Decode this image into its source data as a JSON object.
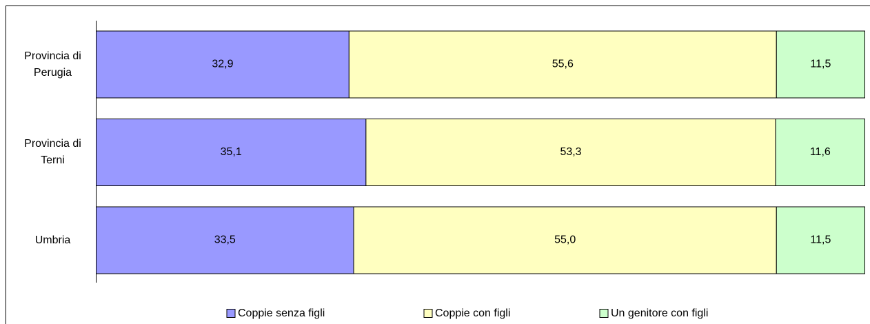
{
  "chart_data": {
    "type": "stacked-bar-horizontal",
    "categories": [
      "Provincia di Perugia",
      "Provincia di Terni",
      "Umbria"
    ],
    "series": [
      {
        "name": "Coppie senza figli",
        "color": "#9999ff",
        "values": [
          32.9,
          35.1,
          33.5
        ],
        "value_labels": [
          "32,9",
          "35,1",
          "33,5"
        ]
      },
      {
        "name": "Coppie con figli",
        "color": "#ffffc0",
        "values": [
          55.6,
          53.3,
          55.0
        ],
        "value_labels": [
          "55,6",
          "53,3",
          "55,0"
        ]
      },
      {
        "name": "Un genitore con figli",
        "color": "#ccffcc",
        "values": [
          11.5,
          11.6,
          11.5
        ],
        "value_labels": [
          "11,5",
          "11,6",
          "11,5"
        ]
      }
    ],
    "xlim": [
      0,
      100
    ],
    "legend": "bottom"
  }
}
